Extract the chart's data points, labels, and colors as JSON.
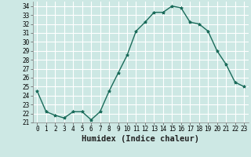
{
  "x": [
    0,
    1,
    2,
    3,
    4,
    5,
    6,
    7,
    8,
    9,
    10,
    11,
    12,
    13,
    14,
    15,
    16,
    17,
    18,
    19,
    20,
    21,
    22,
    23
  ],
  "y": [
    24.5,
    22.2,
    21.8,
    21.5,
    22.2,
    22.2,
    21.3,
    22.2,
    24.5,
    26.5,
    28.5,
    31.2,
    32.2,
    33.3,
    33.3,
    34.0,
    33.8,
    32.2,
    32.0,
    31.2,
    29.0,
    27.5,
    25.5,
    25.0
  ],
  "line_color": "#1a6b5a",
  "marker": "*",
  "bg_color": "#cde8e4",
  "grid_color": "#ffffff",
  "xlabel": "Humidex (Indice chaleur)",
  "ylim": [
    21,
    34.5
  ],
  "xlim": [
    -0.5,
    23.5
  ],
  "yticks": [
    21,
    22,
    23,
    24,
    25,
    26,
    27,
    28,
    29,
    30,
    31,
    32,
    33,
    34
  ],
  "xticks": [
    0,
    1,
    2,
    3,
    4,
    5,
    6,
    7,
    8,
    9,
    10,
    11,
    12,
    13,
    14,
    15,
    16,
    17,
    18,
    19,
    20,
    21,
    22,
    23
  ],
  "tick_fontsize": 5.5,
  "xlabel_fontsize": 7.5,
  "line_width": 1.0,
  "marker_size": 2.8
}
